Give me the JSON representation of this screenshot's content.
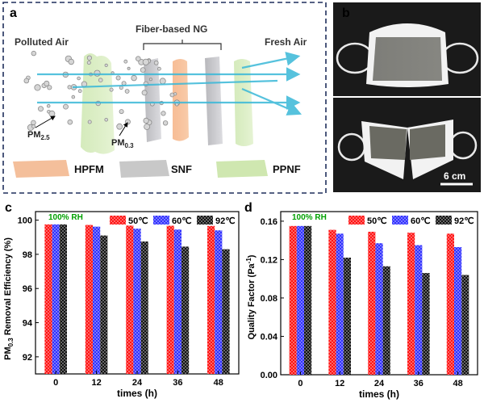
{
  "panel_a": {
    "label": "a",
    "polluted_air": "Polluted Air",
    "fiber_ng": "Fiber-based NG",
    "fresh_air": "Fresh Air",
    "pm25_base": "PM",
    "pm25_sub": "2.5",
    "pm03_base": "PM",
    "pm03_sub": "0.3",
    "legend": [
      {
        "name": "HPFM",
        "color": "#f2b48a"
      },
      {
        "name": "SNF",
        "color": "#c8c8c8"
      },
      {
        "name": "PPNF",
        "color": "#cfe7b0"
      }
    ],
    "border_color": "#1f2f5c"
  },
  "panel_b": {
    "label": "b",
    "scale_label": "6 cm"
  },
  "panel_c": {
    "label": "c",
    "annotation": "100% RH",
    "ylabel_base": "PM",
    "ylabel_sub": "0.3",
    "ylabel_rest": " Removal Efficiency (%)"
  },
  "panel_d": {
    "label": "d",
    "annotation": "100% RH",
    "ylabel_base": "Quality Factor (Pa",
    "ylabel_sup": "-1",
    "ylabel_end": ")"
  },
  "colors": {
    "series_50": "#ff0000",
    "series_60": "#2020ff",
    "series_92": "#000000",
    "rh_annotation": "#00a000"
  },
  "chart_data": [
    {
      "type": "bar",
      "categories": [
        "0",
        "12",
        "24",
        "36",
        "48"
      ],
      "xlabel": "times (h)",
      "ylabel": "PM0.3 Removal Efficiency (%)",
      "ylim": [
        91,
        100.5
      ],
      "yticks": [
        92,
        94,
        96,
        98,
        100
      ],
      "series": [
        {
          "name": "50℃",
          "values": [
            99.75,
            99.72,
            99.68,
            99.67,
            99.66
          ]
        },
        {
          "name": "60℃",
          "values": [
            99.75,
            99.62,
            99.5,
            99.45,
            99.4
          ]
        },
        {
          "name": "92℃",
          "values": [
            99.75,
            99.1,
            98.75,
            98.45,
            98.3
          ]
        }
      ],
      "legend": "top"
    },
    {
      "type": "bar",
      "categories": [
        "0",
        "12",
        "24",
        "36",
        "48"
      ],
      "xlabel": "times (h)",
      "ylabel": "Quality Factor (Pa-1)",
      "ylim": [
        0,
        0.17
      ],
      "yticks": [
        "0.00",
        "0.04",
        "0.08",
        "0.12",
        "0.16"
      ],
      "series": [
        {
          "name": "50℃",
          "values": [
            0.155,
            0.151,
            0.149,
            0.148,
            0.147
          ]
        },
        {
          "name": "60℃",
          "values": [
            0.155,
            0.147,
            0.137,
            0.135,
            0.133
          ]
        },
        {
          "name": "92℃",
          "values": [
            0.155,
            0.122,
            0.113,
            0.106,
            0.104
          ]
        }
      ],
      "legend": "top"
    }
  ]
}
